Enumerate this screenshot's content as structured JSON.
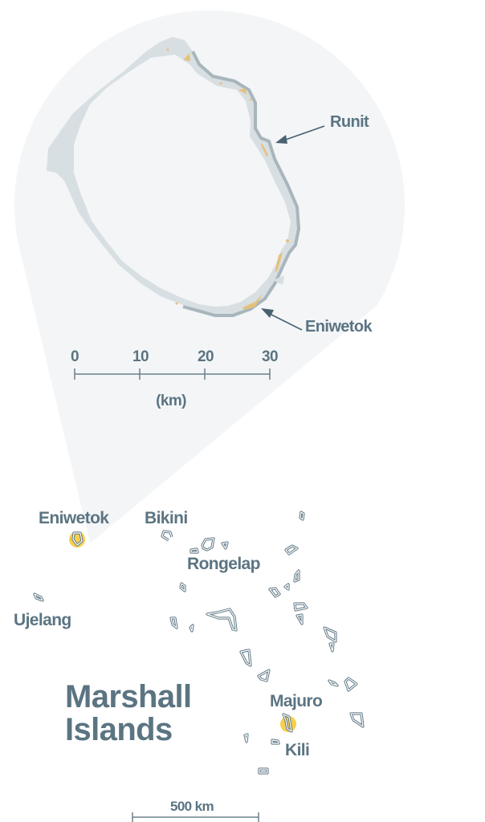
{
  "colors": {
    "label": "#5b7482",
    "callout_background": "#f3f5f7",
    "reef": "#d8dfe2",
    "reef_edge": "#a8b6bc",
    "land": "#e6c07b",
    "highlight": "#f7cf4a",
    "island_outline": "#5f7785"
  },
  "inset": {
    "labels": {
      "runit": "Runit",
      "eniwetok": "Eniwetok"
    },
    "scale": {
      "ticks": [
        "0",
        "10",
        "20",
        "30"
      ],
      "unit": "(km)"
    }
  },
  "overview": {
    "title_line1": "Marshall",
    "title_line2": "Islands",
    "labels": {
      "eniwetok": "Eniwetok",
      "bikini": "Bikini",
      "rongelap": "Rongelap",
      "ujelang": "Ujelang",
      "majuro": "Majuro",
      "kili": "Kili"
    },
    "highlighted": [
      "Eniwetok",
      "Majuro"
    ],
    "scale_label": "500 km"
  }
}
